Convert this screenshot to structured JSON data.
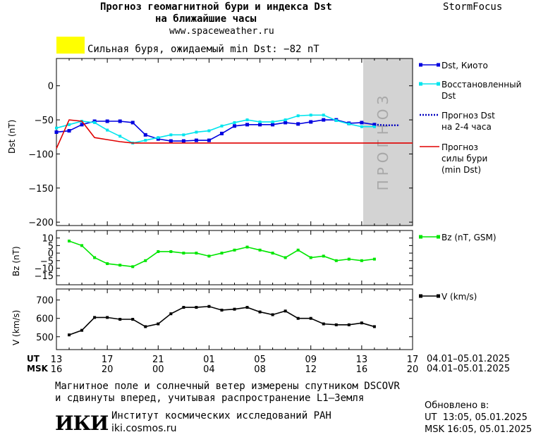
{
  "header": {
    "title_line1": "Прогноз геомагнитной бури и индекса Dst",
    "title_line2": "на ближайшие часы",
    "site": "www.spaceweather.ru",
    "brand": "StormFocus"
  },
  "storm_banner": {
    "color": "#ffff00",
    "text": "Сильная буря, ожидаемый min Dst: −82 nT"
  },
  "forecast_label": "ПРОГНОЗ",
  "chart_data": [
    {
      "type": "line",
      "ylabel": "Dst (nT)",
      "ylim": [
        -205,
        40
      ],
      "yticks": [
        0,
        -50,
        -100,
        -150,
        -200
      ],
      "grid": false,
      "legend_position": "right",
      "x_range": [
        0,
        28
      ],
      "forecast_shaded_region": [
        25,
        28
      ],
      "series": [
        {
          "name": "Dst, Киото",
          "color": "#0000e0",
          "x": [
            0,
            1,
            2,
            3,
            4,
            5,
            6,
            7,
            8,
            9,
            10,
            11,
            12,
            13,
            14,
            15,
            16,
            17,
            18,
            19,
            20,
            21,
            22,
            23,
            24,
            25
          ],
          "y": [
            -68,
            -66,
            -57,
            -52,
            -52,
            -52,
            -54,
            -72,
            -78,
            -81,
            -81,
            -80,
            -80,
            -70,
            -59,
            -57,
            -57,
            -57,
            -54,
            -56,
            -53,
            -50,
            -50,
            -55,
            -54,
            -57
          ]
        },
        {
          "name": "Восстановленный Dst",
          "color": "#00e5ee",
          "x": [
            0,
            1,
            2,
            3,
            4,
            5,
            6,
            7,
            8,
            9,
            10,
            11,
            12,
            13,
            14,
            15,
            16,
            17,
            18,
            19,
            20,
            21,
            22,
            23,
            24,
            25
          ],
          "y": [
            -62,
            -57,
            -52,
            -54,
            -65,
            -74,
            -84,
            -80,
            -76,
            -72,
            -72,
            -68,
            -66,
            -59,
            -54,
            -50,
            -53,
            -53,
            -50,
            -44,
            -43,
            -43,
            -51,
            -56,
            -60,
            -60
          ]
        },
        {
          "name": "Прогноз Dst на 2-4 часа",
          "color": "#0000c0",
          "dashed": true,
          "x": [
            25,
            26,
            27
          ],
          "y": [
            -57,
            -58,
            -58
          ]
        },
        {
          "name": "Прогноз силы бури (min Dst)",
          "color": "#e00000",
          "x": [
            0,
            1,
            2,
            3,
            4,
            5,
            6,
            28
          ],
          "y": [
            -92,
            -50,
            -52,
            -76,
            -79,
            -82,
            -84,
            -84
          ]
        }
      ]
    },
    {
      "type": "line",
      "ylabel": "Bz (nT)",
      "ylim": [
        -21,
        15
      ],
      "yticks": [
        10,
        5,
        0,
        -5,
        -10,
        -15
      ],
      "grid": false,
      "x_range": [
        0,
        28
      ],
      "series": [
        {
          "name": "Bz (nT, GSM)",
          "color": "#00e600",
          "x": [
            1,
            2,
            3,
            4,
            5,
            6,
            7,
            8,
            9,
            10,
            11,
            12,
            13,
            14,
            15,
            16,
            17,
            18,
            19,
            20,
            21,
            22,
            23,
            24,
            25
          ],
          "y": [
            8,
            5,
            -3,
            -7,
            -8,
            -9,
            -5,
            1,
            1,
            0,
            0,
            -2,
            0,
            2,
            4,
            2,
            0,
            -3,
            2,
            -3,
            -2,
            -5,
            -4,
            -5,
            -4
          ]
        }
      ]
    },
    {
      "type": "line",
      "ylabel": "V (km/s)",
      "ylim": [
        430,
        760
      ],
      "yticks": [
        700,
        600,
        500
      ],
      "grid": false,
      "x_range": [
        0,
        28
      ],
      "series": [
        {
          "name": "V (km/s)",
          "color": "#000000",
          "x": [
            1,
            2,
            3,
            4,
            5,
            6,
            7,
            8,
            9,
            10,
            11,
            12,
            13,
            14,
            15,
            16,
            17,
            18,
            19,
            20,
            21,
            22,
            23,
            24,
            25
          ],
          "y": [
            510,
            535,
            605,
            605,
            595,
            595,
            555,
            570,
            625,
            660,
            660,
            665,
            645,
            650,
            660,
            635,
            620,
            640,
            600,
            600,
            570,
            565,
            565,
            575,
            555
          ]
        }
      ]
    }
  ],
  "x_axis": {
    "ut_label": "UT",
    "msk_label": "MSK",
    "ut_ticks": [
      "13",
      "17",
      "21",
      "01",
      "05",
      "09",
      "13",
      "17"
    ],
    "msk_ticks": [
      "16",
      "20",
      "00",
      "04",
      "08",
      "12",
      "16",
      "20"
    ],
    "tick_hours_offset": [
      0,
      4,
      8,
      12,
      16,
      20,
      24,
      28
    ],
    "date_range_ut": "04.01–05.01.2025",
    "date_range_msk": "04.01–05.01.2025"
  },
  "footer": {
    "note_line1": "Магнитное поле и солнечный ветер измерены спутником DSCOVR",
    "note_line2": "и сдвинуты вперед, учитывая распространение L1–Земля",
    "logo": "ИКИ",
    "institute": "Институт космических исследований РАН",
    "institute_site": "iki.cosmos.ru",
    "updated_label": "Обновлено в:",
    "updated_ut": "UT  13:05, 05.01.2025",
    "updated_msk": "MSK 16:05, 05.01.2025"
  }
}
